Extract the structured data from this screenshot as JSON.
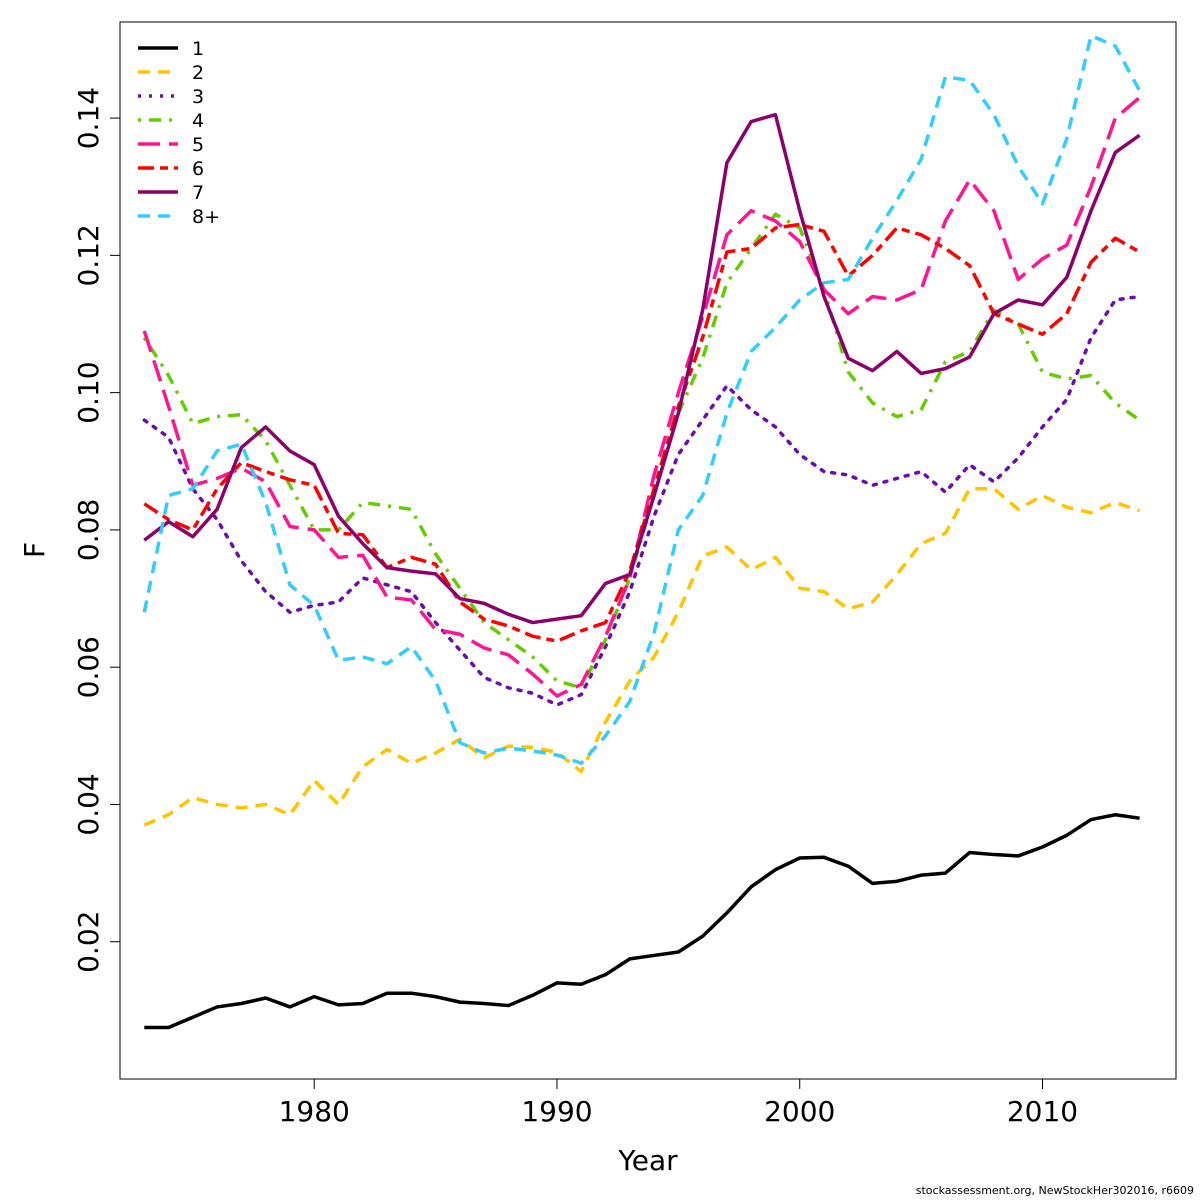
{
  "chart_data": {
    "type": "line",
    "xlabel": "Year",
    "ylabel": "F",
    "xlim": [
      1972,
      2015.5
    ],
    "ylim": [
      0.0,
      0.154
    ],
    "x_ticks": [
      1980,
      1990,
      2000,
      2010
    ],
    "y_ticks": [
      0.02,
      0.04,
      0.06,
      0.08,
      0.1,
      0.12,
      0.14
    ],
    "y_tick_labels": [
      "0.02",
      "0.04",
      "0.06",
      0.08,
      "0.10",
      "0.12",
      "0.14"
    ],
    "x": [
      1973,
      1974,
      1975,
      1976,
      1977,
      1978,
      1979,
      1980,
      1981,
      1982,
      1983,
      1984,
      1985,
      1986,
      1987,
      1988,
      1989,
      1990,
      1991,
      1992,
      1993,
      1994,
      1995,
      1996,
      1997,
      1998,
      1999,
      2000,
      2001,
      2002,
      2003,
      2004,
      2005,
      2006,
      2007,
      2008,
      2009,
      2010,
      2011,
      2012,
      2013,
      2014
    ],
    "legend_position": "top-left",
    "grid": false,
    "series": [
      {
        "name": "1",
        "color": "#000000",
        "dash": "solid",
        "values": [
          0.0075,
          0.0075,
          0.009,
          0.0105,
          0.011,
          0.0118,
          0.0105,
          0.012,
          0.0108,
          0.011,
          0.0125,
          0.0125,
          0.012,
          0.0112,
          0.011,
          0.0107,
          0.0122,
          0.014,
          0.0138,
          0.0152,
          0.0175,
          0.018,
          0.0185,
          0.0208,
          0.0242,
          0.028,
          0.0305,
          0.0322,
          0.0323,
          0.031,
          0.0285,
          0.0288,
          0.0297,
          0.03,
          0.033,
          0.0327,
          0.0325,
          0.0338,
          0.0355,
          0.0378,
          0.0385,
          0.038
        ]
      },
      {
        "name": "2",
        "color": "#FFC400",
        "dash": "dashed",
        "values": [
          0.037,
          0.0385,
          0.041,
          0.04,
          0.0395,
          0.04,
          0.0385,
          0.0435,
          0.04,
          0.0455,
          0.048,
          0.046,
          0.0475,
          0.0495,
          0.0468,
          0.0485,
          0.0483,
          0.0476,
          0.0448,
          0.052,
          0.058,
          0.0615,
          0.068,
          0.0762,
          0.0775,
          0.0742,
          0.076,
          0.0715,
          0.071,
          0.0685,
          0.0695,
          0.0735,
          0.078,
          0.0795,
          0.086,
          0.086,
          0.083,
          0.085,
          0.0833,
          0.0825,
          0.084,
          0.0828
        ]
      },
      {
        "name": "3",
        "color": "#6A0DAD",
        "dash": "dotted",
        "values": [
          0.096,
          0.0935,
          0.086,
          0.0815,
          0.0755,
          0.071,
          0.068,
          0.069,
          0.0695,
          0.073,
          0.072,
          0.071,
          0.0665,
          0.0625,
          0.0585,
          0.057,
          0.0562,
          0.0545,
          0.056,
          0.063,
          0.071,
          0.082,
          0.091,
          0.096,
          0.101,
          0.0975,
          0.095,
          0.091,
          0.0885,
          0.088,
          0.0865,
          0.0875,
          0.0885,
          0.0855,
          0.0895,
          0.087,
          0.0905,
          0.095,
          0.099,
          0.108,
          0.1135,
          0.114
        ]
      },
      {
        "name": "4",
        "color": "#66CC00",
        "dash": "dotdash",
        "values": [
          0.108,
          0.1025,
          0.0955,
          0.0965,
          0.0968,
          0.093,
          0.0865,
          0.08,
          0.08,
          0.084,
          0.0835,
          0.083,
          0.0765,
          0.0715,
          0.0665,
          0.064,
          0.0615,
          0.058,
          0.057,
          0.064,
          0.073,
          0.085,
          0.097,
          0.105,
          0.116,
          0.121,
          0.126,
          0.124,
          0.115,
          0.103,
          0.0985,
          0.0965,
          0.0975,
          0.1045,
          0.106,
          0.112,
          0.11,
          0.103,
          0.102,
          0.1025,
          0.0985,
          0.096
        ]
      },
      {
        "name": "5",
        "color": "#FF1493",
        "dash": "longdash",
        "values": [
          0.109,
          0.098,
          0.0865,
          0.0875,
          0.089,
          0.087,
          0.0805,
          0.08,
          0.076,
          0.0763,
          0.0702,
          0.0698,
          0.0655,
          0.0648,
          0.0628,
          0.0618,
          0.059,
          0.0558,
          0.0575,
          0.0645,
          0.073,
          0.088,
          0.1,
          0.111,
          0.123,
          0.1265,
          0.125,
          0.122,
          0.115,
          0.1115,
          0.114,
          0.1135,
          0.115,
          0.125,
          0.131,
          0.1265,
          0.1165,
          0.1195,
          0.1215,
          0.13,
          0.14,
          0.143
        ]
      },
      {
        "name": "6",
        "color": "#FF0000",
        "dash": "twodash",
        "values": [
          0.0838,
          0.0815,
          0.08,
          0.086,
          0.0898,
          0.0885,
          0.0873,
          0.0865,
          0.0795,
          0.0793,
          0.0745,
          0.076,
          0.075,
          0.0695,
          0.067,
          0.066,
          0.0645,
          0.0638,
          0.0653,
          0.0665,
          0.074,
          0.086,
          0.098,
          0.108,
          0.1205,
          0.121,
          0.124,
          0.1245,
          0.1235,
          0.117,
          0.12,
          0.124,
          0.123,
          0.121,
          0.1185,
          0.1115,
          0.11,
          0.1085,
          0.1115,
          0.119,
          0.1225,
          0.1205
        ]
      },
      {
        "name": "7",
        "color": "#8B006B",
        "dash": "solid",
        "values": [
          0.0785,
          0.0812,
          0.079,
          0.083,
          0.092,
          0.095,
          0.0915,
          0.0895,
          0.082,
          0.078,
          0.0745,
          0.074,
          0.0736,
          0.07,
          0.0693,
          0.0677,
          0.0665,
          0.067,
          0.0675,
          0.0722,
          0.0735,
          0.085,
          0.097,
          0.112,
          0.1335,
          0.1395,
          0.1405,
          0.1265,
          0.114,
          0.105,
          0.1032,
          0.106,
          0.1028,
          0.1035,
          0.1052,
          0.1115,
          0.1135,
          0.1128,
          0.1168,
          0.1265,
          0.135,
          0.1375
        ]
      },
      {
        "name": "8+",
        "color": "#33CCFF",
        "dash": "dashed",
        "values": [
          0.068,
          0.085,
          0.086,
          0.0915,
          0.0925,
          0.084,
          0.072,
          0.069,
          0.061,
          0.0615,
          0.0605,
          0.063,
          0.058,
          0.049,
          0.0475,
          0.0482,
          0.0478,
          0.0472,
          0.046,
          0.05,
          0.055,
          0.065,
          0.08,
          0.085,
          0.097,
          0.106,
          0.1095,
          0.1135,
          0.116,
          0.1165,
          0.1225,
          0.128,
          0.134,
          0.146,
          0.1455,
          0.1405,
          0.133,
          0.1275,
          0.137,
          0.152,
          0.1505,
          0.144
        ]
      }
    ]
  },
  "footer_text": "stockassessment.org, NewStockHer302016, r6609"
}
